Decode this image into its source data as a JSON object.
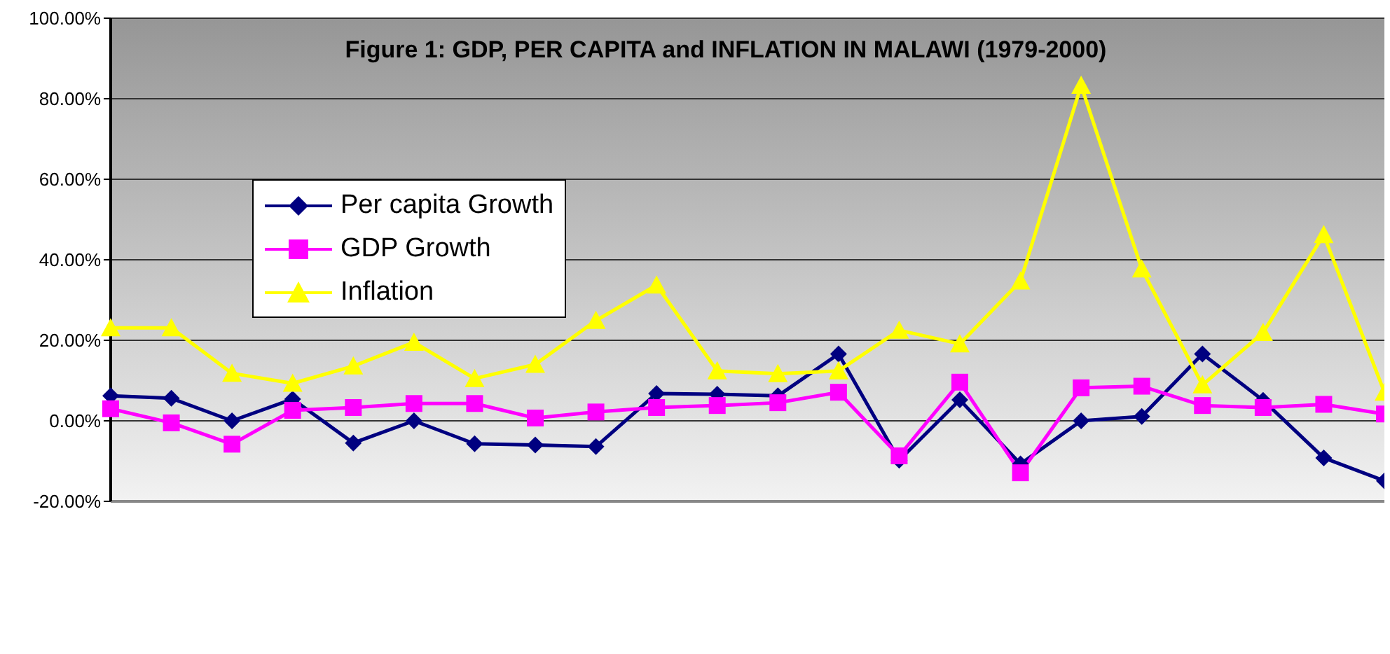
{
  "chart_data": {
    "type": "line",
    "title": "Figure 1: GDP, PER CAPITA and INFLATION IN MALAWI (1979-2000)",
    "categories": [
      null,
      null,
      null,
      null,
      null,
      null,
      null,
      null,
      null,
      null,
      null,
      null,
      null,
      null,
      null,
      null,
      null,
      null,
      null,
      null,
      null,
      null
    ],
    "series": [
      {
        "name": "Per capita Growth",
        "color": "#000080",
        "marker": "diamond",
        "values": [
          6.2,
          5.6,
          0,
          5.4,
          -5.5,
          0,
          -5.7,
          -6.0,
          -6.4,
          6.8,
          6.6,
          6.2,
          16.6,
          -9.8,
          5.2,
          -10.7,
          0,
          1.1,
          16.6,
          5.1,
          -9.2,
          -14.9
        ]
      },
      {
        "name": "GDP Growth",
        "color": "#ff00ff",
        "marker": "square",
        "values": [
          3.0,
          -0.5,
          -5.8,
          2.6,
          3.3,
          4.3,
          4.3,
          0.7,
          2.2,
          3.3,
          3.8,
          4.5,
          7.1,
          -8.7,
          9.6,
          -12.9,
          8.2,
          8.6,
          3.8,
          3.3,
          4.1,
          1.7
        ]
      },
      {
        "name": "Inflation",
        "color": "#ffff00",
        "marker": "triangle",
        "values": [
          23.1,
          23.1,
          11.8,
          9.3,
          13.6,
          19.5,
          10.5,
          14.0,
          24.9,
          33.7,
          12.4,
          11.7,
          12.4,
          22.5,
          19.1,
          34.7,
          83.3,
          37.7,
          8.9,
          21.9,
          46.2,
          7.1
        ]
      }
    ],
    "ylim": [
      -20,
      100
    ],
    "yticks": [
      {
        "value": -20,
        "label": "-20.00%"
      },
      {
        "value": 0,
        "label": "0.00%"
      },
      {
        "value": 20,
        "label": "20.00%"
      },
      {
        "value": 40,
        "label": "40.00%"
      },
      {
        "value": 60,
        "label": "60.00%"
      },
      {
        "value": 80,
        "label": "80.00%"
      },
      {
        "value": 100,
        "label": "100.00%"
      }
    ],
    "grid": "y",
    "legend": "top left",
    "tick_labels": "y",
    "line_style": "solid"
  }
}
